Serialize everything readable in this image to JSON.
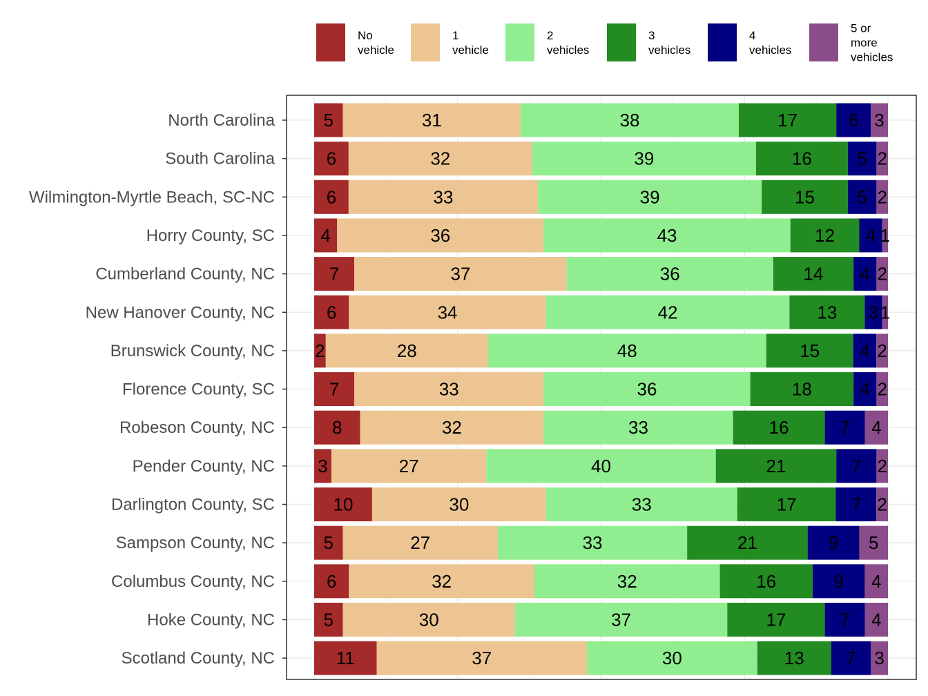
{
  "chart_data": {
    "type": "bar",
    "orientation": "horizontal",
    "stacked": true,
    "title": "",
    "xlabel": "",
    "ylabel": "",
    "xlim": [
      0,
      100
    ],
    "grid": true,
    "legend_position": "top",
    "categories": [
      "North Carolina",
      "South Carolina",
      "Wilmington-Myrtle Beach, SC-NC",
      "Horry County, SC",
      "Cumberland County, NC",
      "New Hanover County, NC",
      "Brunswick County, NC",
      "Florence County, SC",
      "Robeson County, NC",
      "Pender County, NC",
      "Darlington County, SC",
      "Sampson County, NC",
      "Columbus County, NC",
      "Hoke County, NC",
      "Scotland County, NC"
    ],
    "series": [
      {
        "name": "No vehicle",
        "legend_lines": [
          "No",
          "vehicle"
        ],
        "color": "#a52a2a",
        "values": [
          5,
          6,
          6,
          4,
          7,
          6,
          2,
          7,
          8,
          3,
          10,
          5,
          6,
          5,
          11
        ]
      },
      {
        "name": "1 vehicle",
        "legend_lines": [
          "1",
          "vehicle"
        ],
        "color": "#edc593",
        "values": [
          31,
          32,
          33,
          36,
          37,
          34,
          28,
          33,
          32,
          27,
          30,
          27,
          32,
          30,
          37
        ]
      },
      {
        "name": "2 vehicles",
        "legend_lines": [
          "2",
          "vehicles"
        ],
        "color": "#90ee90",
        "values": [
          38,
          39,
          39,
          43,
          36,
          42,
          48,
          36,
          33,
          40,
          33,
          33,
          32,
          37,
          30
        ]
      },
      {
        "name": "3 vehicles",
        "legend_lines": [
          "3",
          "vehicles"
        ],
        "color": "#228b22",
        "values": [
          17,
          16,
          15,
          12,
          14,
          13,
          15,
          18,
          16,
          21,
          17,
          21,
          16,
          17,
          13
        ]
      },
      {
        "name": "4 vehicles",
        "legend_lines": [
          "4",
          "vehicles"
        ],
        "color": "#000080",
        "values": [
          6,
          5,
          5,
          4,
          4,
          3,
          4,
          4,
          7,
          7,
          7,
          9,
          9,
          7,
          7
        ]
      },
      {
        "name": "5 or more vehicles",
        "legend_lines": [
          "5 or",
          "more",
          "vehicles"
        ],
        "color": "#8b4c8b",
        "values": [
          3,
          2,
          2,
          1,
          2,
          1,
          2,
          2,
          4,
          2,
          2,
          5,
          4,
          4,
          3
        ]
      }
    ]
  }
}
